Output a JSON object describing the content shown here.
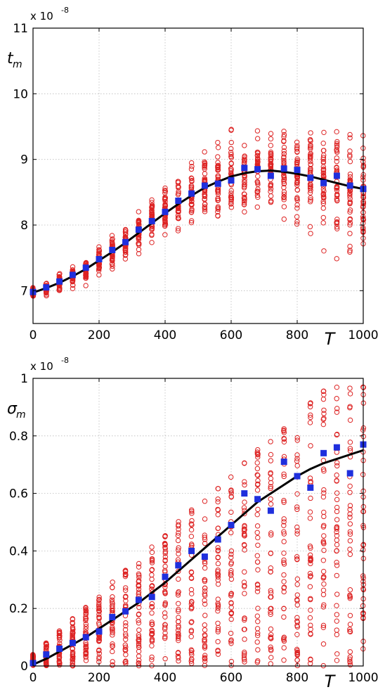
{
  "chart_data": [
    {
      "type": "scatter",
      "ylabel": "t_m",
      "xlabel": "T",
      "exponent_label": "x 10",
      "exponent_power": "-8",
      "xlim": [
        0,
        1000
      ],
      "ylim": [
        6.5,
        11
      ],
      "xticks": [
        0,
        200,
        400,
        600,
        800,
        1000
      ],
      "yticks": [
        7,
        8,
        9,
        10,
        11
      ],
      "grid": true,
      "x": [
        0,
        40,
        80,
        120,
        160,
        200,
        240,
        280,
        320,
        360,
        400,
        440,
        480,
        520,
        560,
        600,
        640,
        680,
        720,
        760,
        800,
        840,
        880,
        920,
        960,
        1000
      ],
      "series": [
        {
          "name": "",
          "marker": "square",
          "color": "#1f2fdd",
          "values": [
            6.98,
            7.05,
            7.14,
            7.24,
            7.35,
            7.48,
            7.62,
            7.74,
            7.93,
            8.06,
            8.2,
            8.37,
            8.48,
            8.6,
            8.63,
            8.68,
            8.87,
            8.85,
            8.75,
            8.86,
            8.84,
            8.72,
            8.64,
            8.75,
            8.6,
            8.55
          ]
        },
        {
          "name": "",
          "line": "smooth",
          "color": "#000000",
          "values": [
            6.97,
            7.04,
            7.12,
            7.22,
            7.33,
            7.46,
            7.59,
            7.73,
            7.88,
            8.03,
            8.18,
            8.32,
            8.45,
            8.57,
            8.66,
            8.74,
            8.79,
            8.82,
            8.83,
            8.81,
            8.78,
            8.74,
            8.69,
            8.64,
            8.59,
            8.55
          ]
        },
        {
          "name": "",
          "marker": "circle",
          "color": "#dd2222",
          "values": "scatter of sample values in each T column, spread growing with T"
        }
      ]
    },
    {
      "type": "scatter",
      "ylabel": "σ_m",
      "xlabel": "T",
      "exponent_label": "x 10",
      "exponent_power": "-8",
      "xlim": [
        0,
        1000
      ],
      "ylim": [
        0,
        1
      ],
      "xticks": [
        0,
        200,
        400,
        600,
        800,
        1000
      ],
      "yticks": [
        0,
        0.2,
        0.4,
        0.6,
        0.8,
        1
      ],
      "grid": true,
      "x": [
        0,
        40,
        80,
        120,
        160,
        200,
        240,
        280,
        320,
        360,
        400,
        440,
        480,
        520,
        560,
        600,
        640,
        680,
        720,
        760,
        800,
        840,
        880,
        920,
        960,
        1000
      ],
      "series": [
        {
          "name": "",
          "marker": "square",
          "color": "#1f2fdd",
          "values": [
            0.01,
            0.04,
            0.06,
            0.08,
            0.1,
            0.12,
            0.17,
            0.19,
            0.23,
            0.24,
            0.31,
            0.35,
            0.4,
            0.38,
            0.44,
            0.49,
            0.6,
            0.58,
            0.54,
            0.71,
            0.66,
            0.62,
            0.74,
            0.76,
            0.67,
            0.77
          ]
        },
        {
          "name": "",
          "line": "smooth",
          "color": "#000000",
          "values": [
            0.005,
            0.025,
            0.05,
            0.075,
            0.1,
            0.13,
            0.16,
            0.19,
            0.22,
            0.255,
            0.29,
            0.33,
            0.37,
            0.41,
            0.45,
            0.49,
            0.53,
            0.57,
            0.6,
            0.63,
            0.66,
            0.685,
            0.705,
            0.72,
            0.735,
            0.75
          ]
        },
        {
          "name": "",
          "marker": "circle",
          "color": "#dd2222",
          "values": "scatter of sample values in each T column, spread growing with T"
        }
      ]
    }
  ]
}
